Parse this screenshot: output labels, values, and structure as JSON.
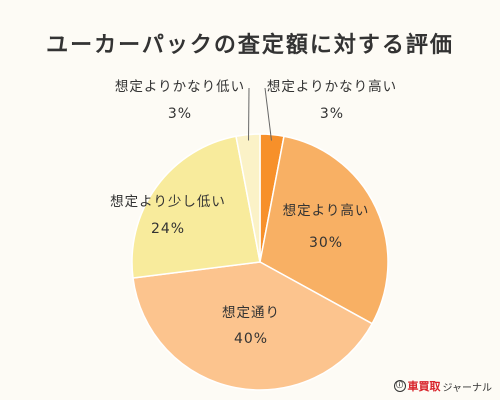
{
  "chart_data": {
    "type": "pie",
    "title": "ユーカーパックの査定額に対する評価",
    "slices": [
      {
        "label": "想定よりかなり高い",
        "value": 3,
        "value_label": "3%",
        "color": "#f7902a"
      },
      {
        "label": "想定より高い",
        "value": 30,
        "value_label": "30%",
        "color": "#f8b064"
      },
      {
        "label": "想定通り",
        "value": 40,
        "value_label": "40%",
        "color": "#fcc48e"
      },
      {
        "label": "想定より少し低い",
        "value": 24,
        "value_label": "24%",
        "color": "#f8eb9c"
      },
      {
        "label": "想定よりかなり低い",
        "value": 3,
        "value_label": "3%",
        "color": "#fbf2c7"
      }
    ],
    "start_angle_deg": 0,
    "direction": "clockwise"
  },
  "logo": {
    "brand": "車買取",
    "suffix": "ジャーナル",
    "mark": "ⓘ"
  }
}
